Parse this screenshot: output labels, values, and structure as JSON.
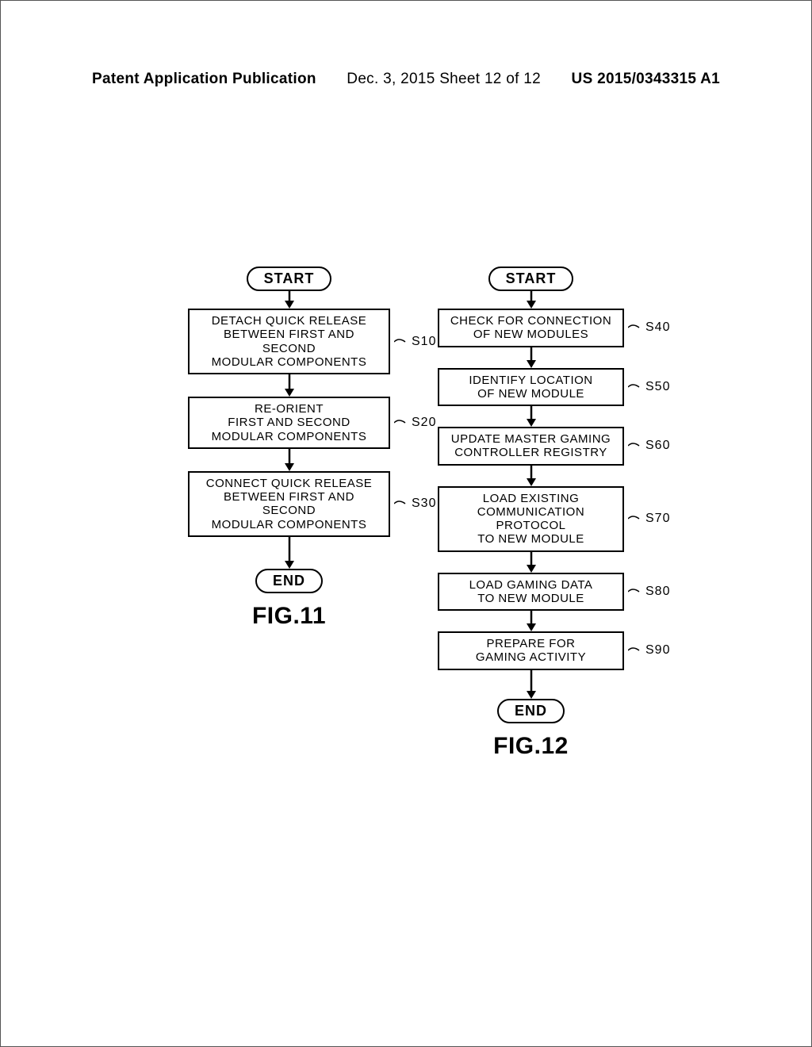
{
  "header": {
    "left": "Patent Application Publication",
    "mid": "Dec. 3, 2015   Sheet 12 of 12",
    "right": "US 2015/0343315 A1"
  },
  "fig11": {
    "start": "START",
    "end": "END",
    "label": "FIG.11",
    "steps": [
      {
        "id": "S10",
        "text": "DETACH QUICK RELEASE\nBETWEEN FIRST AND SECOND\nMODULAR COMPONENTS"
      },
      {
        "id": "S20",
        "text": "RE-ORIENT\nFIRST AND SECOND\nMODULAR COMPONENTS"
      },
      {
        "id": "S30",
        "text": "CONNECT QUICK RELEASE\nBETWEEN FIRST AND SECOND\nMODULAR COMPONENTS"
      }
    ]
  },
  "fig12": {
    "start": "START",
    "end": "END",
    "label": "FIG.12",
    "steps": [
      {
        "id": "S40",
        "text": "CHECK FOR CONNECTION\nOF NEW MODULES"
      },
      {
        "id": "S50",
        "text": "IDENTIFY LOCATION\nOF NEW MODULE"
      },
      {
        "id": "S60",
        "text": "UPDATE MASTER GAMING\nCONTROLLER REGISTRY"
      },
      {
        "id": "S70",
        "text": "LOAD EXISTING\nCOMMUNICATION PROTOCOL\nTO NEW MODULE"
      },
      {
        "id": "S80",
        "text": "LOAD GAMING DATA\nTO NEW MODULE"
      },
      {
        "id": "S90",
        "text": "PREPARE FOR\nGAMING ACTIVITY"
      }
    ]
  },
  "style": {
    "stroke": "#000000",
    "strokeWidth": 2.5,
    "background": "#ffffff",
    "fontFamily": "Arial",
    "arrowLength": 24,
    "arrowHead": 8
  }
}
